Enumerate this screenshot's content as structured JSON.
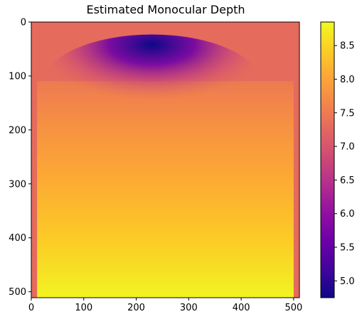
{
  "chart_data": {
    "type": "heatmap",
    "title": "Estimated Monocular Depth",
    "xlabel": "",
    "ylabel": "",
    "colormap": "plasma",
    "xlim": [
      0,
      511
    ],
    "ylim": [
      511,
      0
    ],
    "x_ticks": [
      0,
      100,
      200,
      300,
      400,
      500
    ],
    "y_ticks": [
      0,
      100,
      200,
      300,
      400,
      500
    ],
    "grid": false,
    "colorbar": {
      "range": [
        4.75,
        8.85
      ],
      "ticks": [
        5.0,
        5.5,
        6.0,
        6.5,
        7.0,
        7.5,
        8.0,
        8.5
      ]
    },
    "regions": {
      "top_band": {
        "rows": [
          0,
          109
        ],
        "value": 7.3
      },
      "side_border": {
        "left_cols": [
          0,
          11
        ],
        "right_cols": [
          500,
          511
        ],
        "value": 7.3
      },
      "interior": {
        "rows": [
          110,
          511
        ],
        "row_profile": [
          {
            "row": 110,
            "value": 7.5
          },
          {
            "row": 200,
            "value": 7.8
          },
          {
            "row": 300,
            "value": 8.1
          },
          {
            "row": 400,
            "value": 8.4
          },
          {
            "row": 511,
            "value": 8.8
          }
        ],
        "low_region": {
          "center_x": 230,
          "center_y": 118,
          "min_value": 4.75
        }
      }
    }
  }
}
